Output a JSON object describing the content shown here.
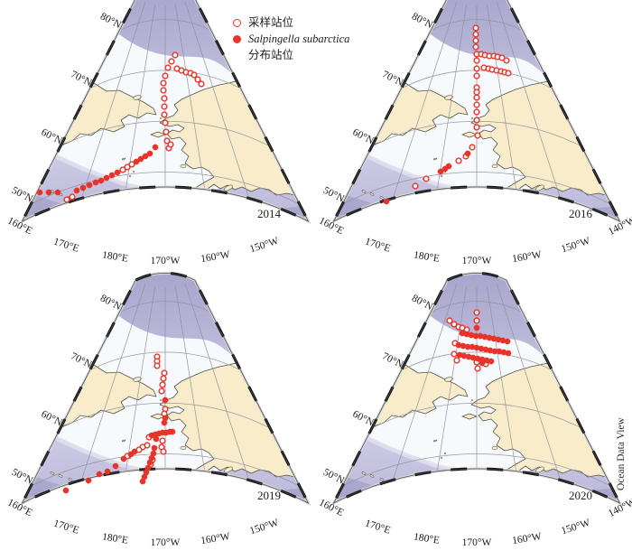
{
  "legend": {
    "open_label": "采样站位",
    "filled_label_species": "Salpingella subarctica",
    "filled_label_suffix": "分布站位"
  },
  "watermark": "Ocean Data View",
  "colors": {
    "marker_red": "#e8332a",
    "land": "#f8ecca",
    "coast": "#53534b",
    "ocean_shelf": "#f7fafd",
    "ocean_mid": "#bcbada",
    "ocean_deep": "#a6a4c9",
    "grid_line": "#90909a",
    "border_black": "#111111",
    "label_text": "#1b1b1b"
  },
  "axis": {
    "lat_labels": [
      "80°N",
      "70°N",
      "60°N",
      "50°N"
    ]
  },
  "panels": [
    {
      "year": "2014",
      "lon_labels": [
        "160°E",
        "170°E",
        "180°E",
        "170°W",
        "160°W",
        "150°W"
      ],
      "stations": {
        "open": [
          [
            194,
            61
          ],
          [
            190,
            68
          ],
          [
            186,
            75
          ],
          [
            196,
            76
          ],
          [
            201,
            78
          ],
          [
            206,
            80
          ],
          [
            211,
            81
          ],
          [
            215,
            83
          ],
          [
            219,
            88
          ],
          [
            223,
            93
          ],
          [
            183,
            84
          ],
          [
            181,
            92
          ],
          [
            181,
            100
          ],
          [
            182,
            109
          ],
          [
            182,
            118
          ],
          [
            182,
            127
          ],
          [
            183,
            136
          ],
          [
            184,
            146
          ],
          [
            185,
            156
          ],
          [
            187,
            164
          ],
          [
            189,
            160
          ],
          [
            146,
            182
          ],
          [
            141,
            185
          ],
          [
            136,
            188
          ],
          [
            80,
            218
          ],
          [
            74,
            221
          ]
        ],
        "filled": [
          [
            172,
            163
          ],
          [
            166,
            170
          ],
          [
            161,
            173
          ],
          [
            156,
            176
          ],
          [
            151,
            179
          ],
          [
            130,
            191
          ],
          [
            124,
            194
          ],
          [
            118,
            197
          ],
          [
            112,
            200
          ],
          [
            106,
            202
          ],
          [
            99,
            205
          ],
          [
            92,
            208
          ],
          [
            85,
            211
          ],
          [
            64,
            213
          ],
          [
            54,
            213
          ],
          [
            44,
            213
          ]
        ]
      }
    },
    {
      "year": "2016",
      "lon_labels": [
        "160°E",
        "170°E",
        "180°E",
        "170°W",
        "160°W",
        "150°W",
        "140°W"
      ],
      "stations": {
        "open": [
          [
            182,
            31
          ],
          [
            182,
            38
          ],
          [
            182,
            45
          ],
          [
            182,
            52
          ],
          [
            183,
            60
          ],
          [
            183,
            67
          ],
          [
            183,
            76
          ],
          [
            183,
            84
          ],
          [
            183,
            97
          ],
          [
            183,
            102
          ],
          [
            183,
            108
          ],
          [
            183,
            116
          ],
          [
            183,
            124
          ],
          [
            183,
            133
          ],
          [
            183,
            141
          ],
          [
            184,
            150
          ],
          [
            188,
            60
          ],
          [
            192,
            61
          ],
          [
            197,
            62
          ],
          [
            202,
            62
          ],
          [
            206,
            63
          ],
          [
            211,
            64
          ],
          [
            216,
            67
          ],
          [
            191,
            75
          ],
          [
            196,
            76
          ],
          [
            200,
            77
          ],
          [
            205,
            78
          ],
          [
            210,
            79
          ],
          [
            214,
            80
          ],
          [
            218,
            81
          ],
          [
            178,
            163
          ],
          [
            171,
            173
          ],
          [
            163,
            178
          ],
          [
            127,
            198
          ],
          [
            115,
            206
          ]
        ],
        "filled": [
          [
            173,
            170
          ],
          [
            152,
            184
          ],
          [
            148,
            187
          ],
          [
            143,
            190
          ],
          [
            83,
            223
          ]
        ]
      }
    },
    {
      "year": "2019",
      "lon_labels": [
        "160°E",
        "170°E",
        "180°E",
        "170°W",
        "160°W",
        "150°W"
      ],
      "stations": {
        "open": [
          [
            174,
            83
          ],
          [
            174,
            88
          ],
          [
            174,
            93
          ],
          [
            182,
            101
          ],
          [
            181,
            107
          ],
          [
            180,
            114
          ],
          [
            179,
            121
          ],
          [
            183,
            141
          ],
          [
            182,
            146
          ],
          [
            165,
            172
          ],
          [
            180,
            176
          ],
          [
            179,
            183
          ],
          [
            181,
            188
          ],
          [
            169,
            197
          ],
          [
            167,
            202
          ],
          [
            163,
            181
          ],
          [
            158,
            183
          ],
          [
            154,
            186
          ],
          [
            141,
            193
          ]
        ],
        "filled": [
          [
            183,
            131
          ],
          [
            183,
            151
          ],
          [
            182,
            156
          ],
          [
            168,
            170
          ],
          [
            172,
            169
          ],
          [
            176,
            168
          ],
          [
            180,
            167
          ],
          [
            184,
            167
          ],
          [
            188,
            166
          ],
          [
            191,
            166
          ],
          [
            173,
            174
          ],
          [
            171,
            184
          ],
          [
            170,
            190
          ],
          [
            168,
            195
          ],
          [
            166,
            200
          ],
          [
            164,
            206
          ],
          [
            162,
            211
          ],
          [
            160,
            216
          ],
          [
            158,
            221
          ],
          [
            149,
            188
          ],
          [
            145,
            191
          ],
          [
            137,
            196
          ],
          [
            128,
            204
          ],
          [
            119,
            210
          ],
          [
            110,
            213
          ],
          [
            98,
            220
          ],
          [
            73,
            231
          ]
        ]
      }
    },
    {
      "year": "2020",
      "lon_labels": [
        "160°E",
        "170°E",
        "180°E",
        "170°W",
        "160°W",
        "150°W",
        "140°W"
      ],
      "stations": {
        "open": [
          [
            183,
            34
          ],
          [
            183,
            43
          ],
          [
            153,
            43
          ],
          [
            158,
            47
          ],
          [
            163,
            50
          ],
          [
            167,
            51
          ],
          [
            172,
            53
          ],
          [
            159,
            68
          ],
          [
            158,
            80
          ],
          [
            161,
            87
          ],
          [
            183,
            89
          ],
          [
            184,
            96
          ],
          [
            193,
            91
          ]
        ],
        "filled": [
          [
            183,
            51
          ],
          [
            167,
            57
          ],
          [
            172,
            58
          ],
          [
            177,
            59
          ],
          [
            182,
            60
          ],
          [
            187,
            60
          ],
          [
            192,
            61
          ],
          [
            197,
            62
          ],
          [
            202,
            63
          ],
          [
            207,
            64
          ],
          [
            212,
            65
          ],
          [
            217,
            66
          ],
          [
            163,
            70
          ],
          [
            168,
            71
          ],
          [
            173,
            72
          ],
          [
            178,
            72
          ],
          [
            183,
            73
          ],
          [
            188,
            74
          ],
          [
            193,
            75
          ],
          [
            198,
            76
          ],
          [
            203,
            77
          ],
          [
            208,
            77
          ],
          [
            213,
            78
          ],
          [
            218,
            79
          ],
          [
            164,
            81
          ],
          [
            169,
            82
          ],
          [
            174,
            83
          ],
          [
            179,
            84
          ],
          [
            184,
            85
          ],
          [
            189,
            86
          ],
          [
            194,
            87
          ],
          [
            199,
            88
          ],
          [
            189,
            90
          ]
        ]
      }
    }
  ]
}
